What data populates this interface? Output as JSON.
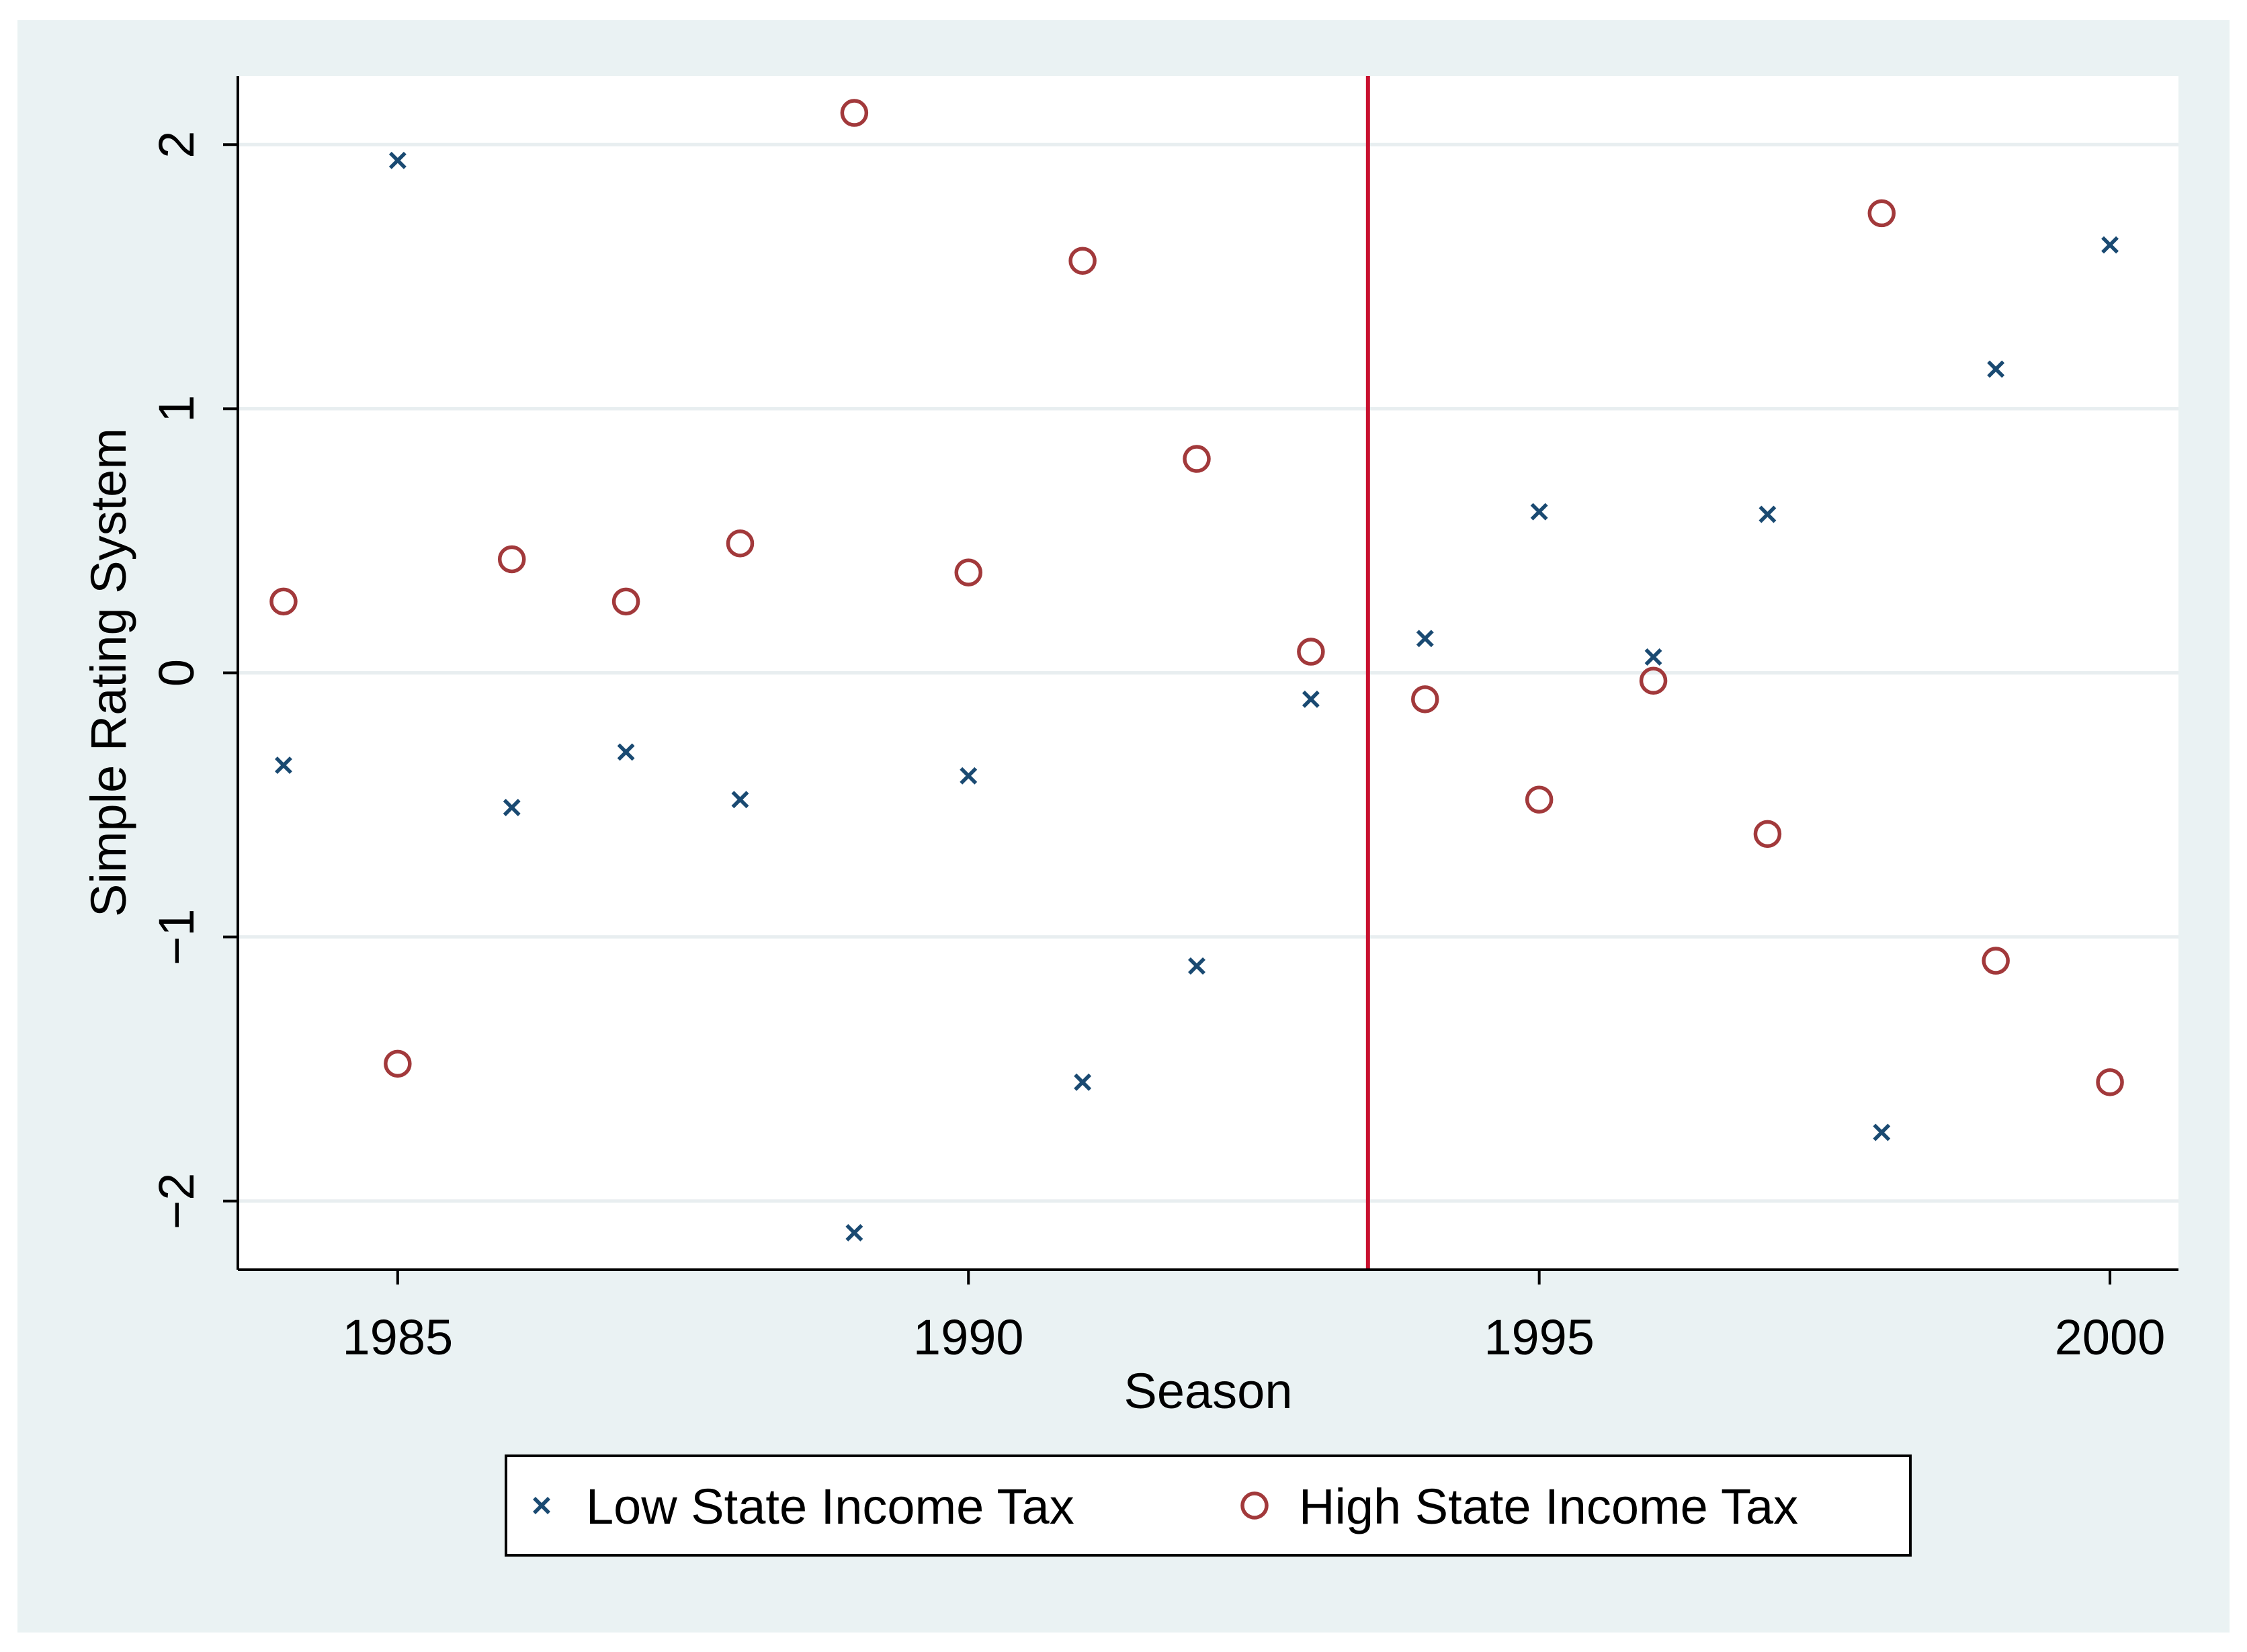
{
  "chart_data": {
    "type": "scatter",
    "title": "",
    "xlabel": "Season",
    "ylabel": "Simple Rating System",
    "xlim": [
      1983.6,
      2000.6
    ],
    "ylim": [
      -2.26,
      2.26
    ],
    "x_ticks": [
      1985,
      1990,
      1995,
      2000
    ],
    "x_tick_labels": [
      "1985",
      "1990",
      "1995",
      "2000"
    ],
    "y_ticks": [
      -2,
      -1,
      0,
      1,
      2
    ],
    "y_tick_labels": [
      "−2",
      "−1",
      "0",
      "1",
      "2"
    ],
    "grid": true,
    "reference_line": {
      "axis": "x",
      "value": 1993.5,
      "color": "#c8102e"
    },
    "legend": {
      "position": "bottom",
      "entries": [
        "Low State Income Tax",
        "High State Income Tax"
      ]
    },
    "series": [
      {
        "name": "Low State Income Tax",
        "marker": "x",
        "color": "#1a4a72",
        "points": [
          [
            1984,
            -0.35
          ],
          [
            1985,
            1.94
          ],
          [
            1986,
            -0.51
          ],
          [
            1987,
            -0.3
          ],
          [
            1988,
            -0.48
          ],
          [
            1989,
            -2.12
          ],
          [
            1990,
            -0.39
          ],
          [
            1991,
            -1.55
          ],
          [
            1992,
            -1.11
          ],
          [
            1993,
            -0.1
          ],
          [
            1994,
            0.13
          ],
          [
            1995,
            0.61
          ],
          [
            1996,
            0.06
          ],
          [
            1997,
            0.6
          ],
          [
            1998,
            -1.74
          ],
          [
            1999,
            1.15
          ],
          [
            2000,
            1.62
          ]
        ]
      },
      {
        "name": "High State Income Tax",
        "marker": "o",
        "color": "#a2393b",
        "points": [
          [
            1984,
            0.27
          ],
          [
            1985,
            -1.48
          ],
          [
            1986,
            0.43
          ],
          [
            1987,
            0.27
          ],
          [
            1988,
            0.49
          ],
          [
            1989,
            2.12
          ],
          [
            1990,
            0.38
          ],
          [
            1991,
            1.56
          ],
          [
            1992,
            0.81
          ],
          [
            1993,
            0.08
          ],
          [
            1994,
            -0.1
          ],
          [
            1995,
            -0.48
          ],
          [
            1996,
            -0.03
          ],
          [
            1997,
            -0.61
          ],
          [
            1998,
            1.74
          ],
          [
            1999,
            -1.09
          ],
          [
            2000,
            -1.55
          ]
        ]
      }
    ]
  }
}
